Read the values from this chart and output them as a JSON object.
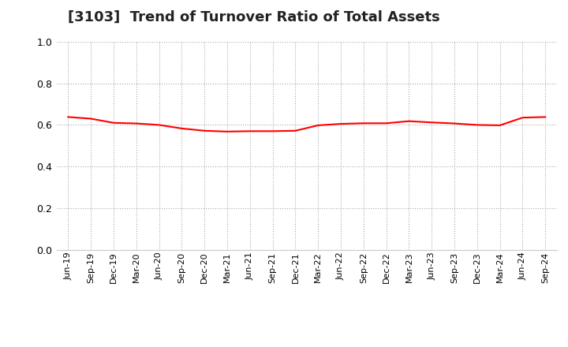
{
  "title": "[3103]  Trend of Turnover Ratio of Total Assets",
  "title_fontsize": 13,
  "title_fontweight": "bold",
  "line_color": "#FF0000",
  "line_width": 1.5,
  "background_color": "#FFFFFF",
  "ylim": [
    0.0,
    1.0
  ],
  "yticks": [
    0.0,
    0.2,
    0.4,
    0.6,
    0.8,
    1.0
  ],
  "grid_color": "#AAAAAA",
  "x_labels": [
    "Jun-19",
    "Sep-19",
    "Dec-19",
    "Mar-20",
    "Jun-20",
    "Sep-20",
    "Dec-20",
    "Mar-21",
    "Jun-21",
    "Sep-21",
    "Dec-21",
    "Mar-22",
    "Jun-22",
    "Sep-22",
    "Dec-22",
    "Mar-23",
    "Jun-23",
    "Sep-23",
    "Dec-23",
    "Mar-24",
    "Jun-24",
    "Sep-24"
  ],
  "values": [
    0.638,
    0.63,
    0.61,
    0.607,
    0.6,
    0.583,
    0.572,
    0.568,
    0.57,
    0.57,
    0.572,
    0.598,
    0.605,
    0.608,
    0.608,
    0.618,
    0.612,
    0.607,
    0.6,
    0.598,
    0.635,
    0.638
  ]
}
